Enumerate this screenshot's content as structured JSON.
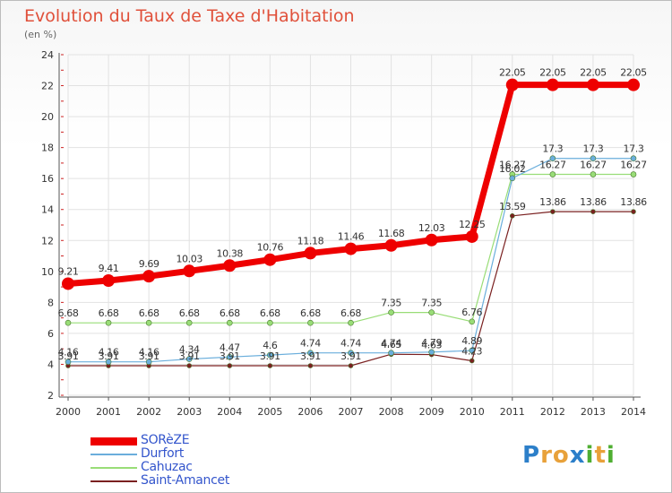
{
  "title": "Evolution du Taux de Taxe d'Habitation",
  "unit": "(en %)",
  "logo": {
    "text": "Proxiti",
    "letters": [
      "P",
      "r",
      "o",
      "x",
      "i",
      "t",
      "i"
    ],
    "colors": [
      "#2c7fc9",
      "#e8a13a",
      "#e8a13a",
      "#2c7fc9",
      "#4fae32",
      "#e8a13a",
      "#4fae32"
    ]
  },
  "chart_data": {
    "type": "line",
    "x": [
      "2000",
      "2001",
      "2002",
      "2003",
      "2004",
      "2005",
      "2006",
      "2007",
      "2008",
      "2009",
      "2010",
      "2011",
      "2012",
      "2013",
      "2014"
    ],
    "ylim": [
      2,
      24
    ],
    "yticks": [
      2,
      4,
      6,
      8,
      10,
      12,
      14,
      16,
      18,
      20,
      22,
      24
    ],
    "grid": true,
    "legend": "bottom-left",
    "series": [
      {
        "name": "Saint-Amancet",
        "color": "#7a2020",
        "width": 1.2,
        "marker": 2.5,
        "values": [
          3.91,
          3.91,
          3.91,
          3.91,
          3.91,
          3.91,
          3.91,
          3.91,
          4.65,
          4.63,
          4.23,
          13.59,
          13.86,
          13.86,
          13.86
        ],
        "labels": [
          "3.91",
          "3.91",
          "3.91",
          "3.91",
          "3.91",
          "3.91",
          "3.91",
          "3.91",
          "4.65",
          "4.63",
          "4.23",
          "13.59",
          "13.86",
          "13.86",
          "13.86"
        ]
      },
      {
        "name": "Cahuzac",
        "color": "#99dd77",
        "width": 1.2,
        "marker": 3,
        "values": [
          6.68,
          6.68,
          6.68,
          6.68,
          6.68,
          6.68,
          6.68,
          6.68,
          7.35,
          7.35,
          6.76,
          16.27,
          16.27,
          16.27,
          16.27
        ],
        "labels": [
          "6.68",
          "6.68",
          "6.68",
          "6.68",
          "6.68",
          "6.68",
          "6.68",
          "6.68",
          "7.35",
          "7.35",
          "6.76",
          "16.27",
          "16.27",
          "16.27",
          "16.27"
        ]
      },
      {
        "name": "Durfort",
        "color": "#6aaedc",
        "width": 1.2,
        "marker": 3,
        "values": [
          4.16,
          4.16,
          4.16,
          4.34,
          4.47,
          4.6,
          4.74,
          4.74,
          4.74,
          4.79,
          4.89,
          16.02,
          17.3,
          17.3,
          17.3
        ],
        "labels": [
          "4.16",
          "4.16",
          "4.16",
          "4.34",
          "4.47",
          "4.6",
          "4.74",
          "4.74",
          "4.74",
          "4.79",
          "4.89",
          "16.02",
          "17.3",
          "17.3",
          "17.3"
        ]
      },
      {
        "name": "SORèZE",
        "color": "#ee0000",
        "width": 7,
        "marker": 7,
        "values": [
          9.21,
          9.41,
          9.69,
          10.03,
          10.38,
          10.76,
          11.18,
          11.46,
          11.68,
          12.03,
          12.25,
          22.05,
          22.05,
          22.05,
          22.05
        ],
        "labels": [
          "9.21",
          "9.41",
          "9.69",
          "10.03",
          "10.38",
          "10.76",
          "11.18",
          "11.46",
          "11.68",
          "12.03",
          "12.25",
          "22.05",
          "22.05",
          "22.05",
          "22.05"
        ]
      }
    ],
    "legend_order": [
      "SORèZE",
      "Durfort",
      "Cahuzac",
      "Saint-Amancet"
    ]
  }
}
